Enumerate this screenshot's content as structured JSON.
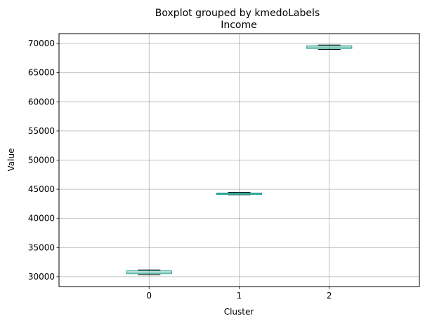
{
  "chart_data": {
    "type": "boxplot",
    "suptitle": "Boxplot grouped by kmedoLabels",
    "title": "Income",
    "xlabel": "Cluster",
    "ylabel": "Value",
    "categories": [
      "0",
      "1",
      "2"
    ],
    "ylim": [
      28300,
      71700
    ],
    "yticks": [
      30000,
      35000,
      40000,
      45000,
      50000,
      55000,
      60000,
      65000,
      70000
    ],
    "grid": true,
    "boxes": [
      {
        "category": "0",
        "whisker_low": 30350,
        "q1": 30500,
        "median": 30800,
        "q3": 31000,
        "whisker_high": 31150
      },
      {
        "category": "1",
        "whisker_low": 44050,
        "q1": 44100,
        "median": 44250,
        "q3": 44350,
        "whisker_high": 44450
      },
      {
        "category": "2",
        "whisker_low": 69000,
        "q1": 69150,
        "median": 69400,
        "q3": 69600,
        "whisker_high": 69750
      }
    ],
    "colors": {
      "box": "#1f9e89",
      "median": "#1f9e89",
      "whisker": "#000000",
      "grid": "#b0b0b0",
      "axes": "#000000"
    }
  }
}
